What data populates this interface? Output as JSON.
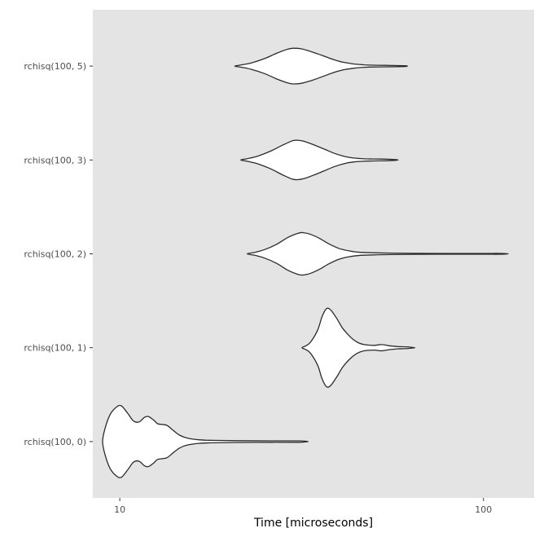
{
  "chart_data": {
    "type": "violin",
    "orientation": "horizontal",
    "title": "",
    "xlabel": "Time [microseconds]",
    "ylabel": "",
    "x_scale": "log10",
    "x_domain": [
      8.43,
      137.8
    ],
    "x_ticks": [
      {
        "value": 10,
        "label": "10"
      },
      {
        "value": 100,
        "label": "100"
      }
    ],
    "categories": [
      "rchisq(100, 5)",
      "rchisq(100, 3)",
      "rchisq(100, 2)",
      "rchisq(100, 1)",
      "rchisq(100, 0)"
    ],
    "colors": {
      "panel_bg": "#e4e4e4",
      "violin_fill": "#ffffff",
      "violin_stroke": "#2b2b2b",
      "tick_mark": "#333333",
      "tick_label": "#4d4d4d"
    },
    "violins": [
      {
        "label": "rchisq(100, 5)",
        "amplitude": 0.38,
        "profile": [
          [
            20.7,
            0
          ],
          [
            21.5,
            0.06
          ],
          [
            23,
            0.18
          ],
          [
            25,
            0.42
          ],
          [
            27,
            0.72
          ],
          [
            29,
            0.95
          ],
          [
            30,
            1
          ],
          [
            31.5,
            0.97
          ],
          [
            33.5,
            0.82
          ],
          [
            36,
            0.6
          ],
          [
            38.5,
            0.38
          ],
          [
            41,
            0.22
          ],
          [
            44,
            0.12
          ],
          [
            47,
            0.07
          ],
          [
            50,
            0.05
          ],
          [
            54,
            0.04
          ],
          [
            58,
            0.03
          ],
          [
            61,
            0.02
          ],
          [
            61.8,
            0
          ]
        ]
      },
      {
        "label": "rchisq(100, 3)",
        "amplitude": 0.42,
        "profile": [
          [
            21.5,
            0
          ],
          [
            22.5,
            0.07
          ],
          [
            24,
            0.2
          ],
          [
            26,
            0.45
          ],
          [
            28,
            0.75
          ],
          [
            29.8,
            0.97
          ],
          [
            30.8,
            1
          ],
          [
            32,
            0.95
          ],
          [
            34,
            0.78
          ],
          [
            36.5,
            0.55
          ],
          [
            39,
            0.33
          ],
          [
            41.5,
            0.18
          ],
          [
            44,
            0.1
          ],
          [
            47,
            0.06
          ],
          [
            50,
            0.05
          ],
          [
            54,
            0.04
          ],
          [
            57,
            0.02
          ],
          [
            58.3,
            0
          ]
        ]
      },
      {
        "label": "rchisq(100, 2)",
        "amplitude": 0.45,
        "profile": [
          [
            22.4,
            0
          ],
          [
            23.5,
            0.07
          ],
          [
            25,
            0.2
          ],
          [
            27,
            0.45
          ],
          [
            29,
            0.78
          ],
          [
            31,
            0.98
          ],
          [
            32,
            1
          ],
          [
            33.5,
            0.92
          ],
          [
            35.5,
            0.72
          ],
          [
            37.5,
            0.48
          ],
          [
            40,
            0.26
          ],
          [
            43,
            0.13
          ],
          [
            46,
            0.07
          ],
          [
            50,
            0.05
          ],
          [
            56,
            0.035
          ],
          [
            65,
            0.025
          ],
          [
            80,
            0.02
          ],
          [
            100,
            0.02
          ],
          [
            112,
            0.02
          ],
          [
            117,
            0
          ]
        ]
      },
      {
        "label": "rchisq(100, 1)",
        "amplitude": 0.83,
        "profile": [
          [
            31.7,
            0
          ],
          [
            32.5,
            0.05
          ],
          [
            33.5,
            0.15
          ],
          [
            35,
            0.45
          ],
          [
            36,
            0.8
          ],
          [
            37,
            1
          ],
          [
            38,
            0.97
          ],
          [
            39.5,
            0.75
          ],
          [
            41,
            0.5
          ],
          [
            43,
            0.28
          ],
          [
            45,
            0.14
          ],
          [
            47,
            0.08
          ],
          [
            50,
            0.06
          ],
          [
            52.5,
            0.08
          ],
          [
            55,
            0.05
          ],
          [
            58,
            0.03
          ],
          [
            62,
            0.02
          ],
          [
            64.8,
            0
          ]
        ]
      },
      {
        "label": "rchisq(100, 0)",
        "amplitude": 0.76,
        "profile": [
          [
            8.97,
            0
          ],
          [
            9.1,
            0.35
          ],
          [
            9.4,
            0.75
          ],
          [
            9.8,
            0.97
          ],
          [
            10.1,
            1
          ],
          [
            10.5,
            0.8
          ],
          [
            10.9,
            0.58
          ],
          [
            11.3,
            0.55
          ],
          [
            11.7,
            0.68
          ],
          [
            12.0,
            0.7
          ],
          [
            12.4,
            0.6
          ],
          [
            12.7,
            0.5
          ],
          [
            13.1,
            0.48
          ],
          [
            13.5,
            0.45
          ],
          [
            14.0,
            0.32
          ],
          [
            14.6,
            0.18
          ],
          [
            15.3,
            0.1
          ],
          [
            16.5,
            0.05
          ],
          [
            18,
            0.035
          ],
          [
            21,
            0.025
          ],
          [
            26,
            0.02
          ],
          [
            31,
            0.02
          ],
          [
            33,
            0
          ]
        ]
      }
    ]
  }
}
